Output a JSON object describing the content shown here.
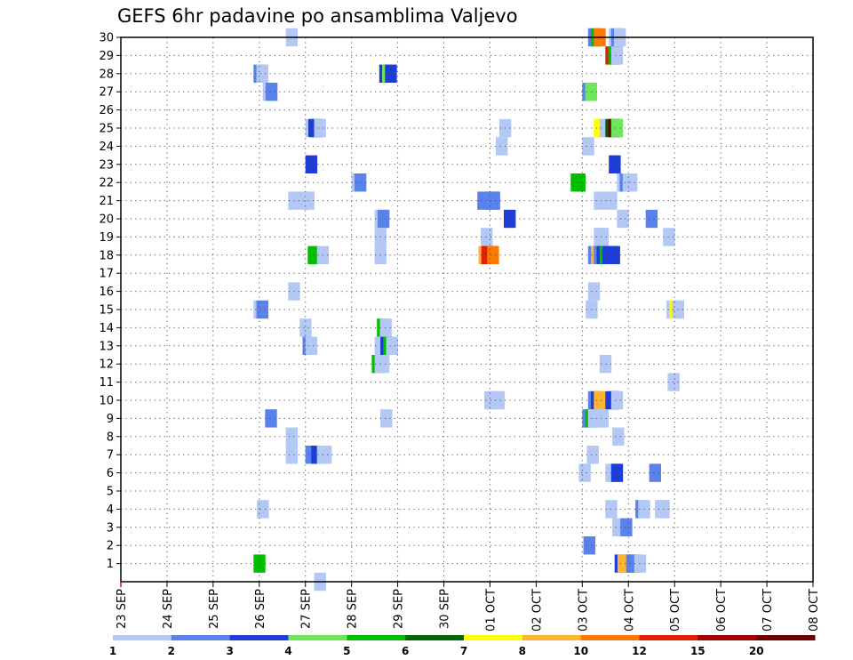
{
  "chart_data": {
    "type": "heatmap",
    "title": "GEFS 6hr padavine po ansamblima Valjevo",
    "xlabel": "",
    "ylabel": "",
    "x_ticks": [
      "23 SEP",
      "24 SEP",
      "25 SEP",
      "26 SEP",
      "27 SEP",
      "28 SEP",
      "29 SEP",
      "30 SEP",
      "01 OCT",
      "02 OCT",
      "03 OCT",
      "04 OCT",
      "05 OCT",
      "06 OCT",
      "07 OCT",
      "08 OCT"
    ],
    "x_range_days": [
      0,
      15
    ],
    "y_ticks": [
      1,
      2,
      3,
      4,
      5,
      6,
      7,
      8,
      9,
      10,
      11,
      12,
      13,
      14,
      15,
      16,
      17,
      18,
      19,
      20,
      21,
      22,
      23,
      24,
      25,
      26,
      27,
      28,
      29,
      30
    ],
    "y_range": [
      0,
      30
    ],
    "grid": true,
    "colorbar": {
      "labels": [
        "1",
        "2",
        "3",
        "4",
        "5",
        "6",
        "7",
        "8",
        "10",
        "12",
        "15",
        "20"
      ],
      "colors": [
        "#b4c8f5",
        "#5a82eb",
        "#1e3cd7",
        "#6ee65a",
        "#00be00",
        "#006400",
        "#ffff00",
        "#ffb432",
        "#ff7800",
        "#e11e00",
        "#a00000",
        "#6e0000"
      ]
    },
    "cells": [
      {
        "m": 30,
        "t": 14.3,
        "c": 0
      },
      {
        "m": 30,
        "t": 40.5,
        "c": 1
      },
      {
        "m": 30,
        "t": 40.75,
        "c": 4
      },
      {
        "m": 30,
        "t": 41,
        "c": 8
      },
      {
        "m": 30,
        "t": 42.3,
        "c": 0
      },
      {
        "m": 30,
        "t": 42.5,
        "c": 1
      },
      {
        "m": 30,
        "t": 42.75,
        "c": 0
      },
      {
        "m": 29,
        "t": 42,
        "c": 9
      },
      {
        "m": 29,
        "t": 42.25,
        "c": 4
      },
      {
        "m": 29,
        "t": 42.5,
        "c": 0
      },
      {
        "m": 28,
        "t": 11.5,
        "c": 1
      },
      {
        "m": 28,
        "t": 11.75,
        "c": 0
      },
      {
        "m": 28,
        "t": 22.4,
        "c": 2
      },
      {
        "m": 28,
        "t": 22.65,
        "c": 3
      },
      {
        "m": 28,
        "t": 22.9,
        "c": 2
      },
      {
        "m": 27,
        "t": 12.3,
        "c": 0
      },
      {
        "m": 27,
        "t": 12.55,
        "c": 1
      },
      {
        "m": 27,
        "t": 40,
        "c": 1
      },
      {
        "m": 27,
        "t": 40.25,
        "c": 3
      },
      {
        "m": 25,
        "t": 16,
        "c": 0
      },
      {
        "m": 25,
        "t": 16.25,
        "c": 2
      },
      {
        "m": 25,
        "t": 16.5,
        "c": 2
      },
      {
        "m": 25,
        "t": 16.75,
        "c": 0
      },
      {
        "m": 25,
        "t": 32.8,
        "c": 0
      },
      {
        "m": 25,
        "t": 41,
        "c": 6
      },
      {
        "m": 25,
        "t": 41.25,
        "c": 6
      },
      {
        "m": 25,
        "t": 41.5,
        "c": 0
      },
      {
        "m": 25,
        "t": 42,
        "c": 5
      },
      {
        "m": 25,
        "t": 42.25,
        "c": 11
      },
      {
        "m": 25,
        "t": 42.5,
        "c": 3
      },
      {
        "m": 24,
        "t": 32.5,
        "c": 0
      },
      {
        "m": 24,
        "t": 40,
        "c": 0
      },
      {
        "m": 23,
        "t": 16,
        "c": 2
      },
      {
        "m": 23,
        "t": 42.3,
        "c": 2
      },
      {
        "m": 22,
        "t": 20,
        "c": 0
      },
      {
        "m": 22,
        "t": 20.25,
        "c": 1
      },
      {
        "m": 22,
        "t": 39,
        "c": 4
      },
      {
        "m": 22,
        "t": 39.25,
        "c": 4
      },
      {
        "m": 22,
        "t": 43,
        "c": 0
      },
      {
        "m": 22,
        "t": 43.25,
        "c": 1
      },
      {
        "m": 22,
        "t": 43.5,
        "c": 0
      },
      {
        "m": 22,
        "t": 43.75,
        "c": 0
      },
      {
        "m": 21,
        "t": 14.5,
        "c": 0
      },
      {
        "m": 21,
        "t": 15.5,
        "c": 0
      },
      {
        "m": 21,
        "t": 15.75,
        "c": 0
      },
      {
        "m": 21,
        "t": 30.9,
        "c": 1
      },
      {
        "m": 21,
        "t": 31.6,
        "c": 1
      },
      {
        "m": 21,
        "t": 31.85,
        "c": 1
      },
      {
        "m": 21,
        "t": 41,
        "c": 0
      },
      {
        "m": 21,
        "t": 42,
        "c": 0
      },
      {
        "m": 20,
        "t": 22,
        "c": 0
      },
      {
        "m": 20,
        "t": 22.25,
        "c": 1
      },
      {
        "m": 20,
        "t": 33.2,
        "c": 2
      },
      {
        "m": 20,
        "t": 43,
        "c": 0
      },
      {
        "m": 20,
        "t": 45.5,
        "c": 1
      },
      {
        "m": 19,
        "t": 22,
        "c": 0
      },
      {
        "m": 19,
        "t": 31.2,
        "c": 0
      },
      {
        "m": 19,
        "t": 41,
        "c": 0
      },
      {
        "m": 19,
        "t": 41.25,
        "c": 0
      },
      {
        "m": 19,
        "t": 47,
        "c": 0
      },
      {
        "m": 18,
        "t": 16.2,
        "c": 4
      },
      {
        "m": 18,
        "t": 17,
        "c": 0
      },
      {
        "m": 18,
        "t": 22,
        "c": 0
      },
      {
        "m": 18,
        "t": 31,
        "c": 7
      },
      {
        "m": 18,
        "t": 31.25,
        "c": 9
      },
      {
        "m": 18,
        "t": 31.5,
        "c": 9
      },
      {
        "m": 18,
        "t": 31.75,
        "c": 8
      },
      {
        "m": 18,
        "t": 40.5,
        "c": 1
      },
      {
        "m": 18,
        "t": 40.75,
        "c": 7
      },
      {
        "m": 18,
        "t": 41,
        "c": 1
      },
      {
        "m": 18,
        "t": 41.25,
        "c": 2
      },
      {
        "m": 18,
        "t": 41.5,
        "c": 4
      },
      {
        "m": 18,
        "t": 41.75,
        "c": 2
      },
      {
        "m": 18,
        "t": 42,
        "c": 2
      },
      {
        "m": 18,
        "t": 42.25,
        "c": 2
      },
      {
        "m": 16,
        "t": 14.5,
        "c": 0
      },
      {
        "m": 16,
        "t": 40.5,
        "c": 0
      },
      {
        "m": 15,
        "t": 11.5,
        "c": 0
      },
      {
        "m": 15,
        "t": 11.75,
        "c": 1
      },
      {
        "m": 15,
        "t": 40.3,
        "c": 0
      },
      {
        "m": 15,
        "t": 47.3,
        "c": 0
      },
      {
        "m": 15,
        "t": 47.55,
        "c": 6
      },
      {
        "m": 15,
        "t": 47.8,
        "c": 0
      },
      {
        "m": 14,
        "t": 15.5,
        "c": 0
      },
      {
        "m": 14,
        "t": 22.2,
        "c": 4
      },
      {
        "m": 14,
        "t": 22.45,
        "c": 0
      },
      {
        "m": 13,
        "t": 15.75,
        "c": 1
      },
      {
        "m": 13,
        "t": 16,
        "c": 0
      },
      {
        "m": 13,
        "t": 22,
        "c": 0
      },
      {
        "m": 13,
        "t": 22.5,
        "c": 2
      },
      {
        "m": 13,
        "t": 22.75,
        "c": 4
      },
      {
        "m": 13,
        "t": 23,
        "c": 0
      },
      {
        "m": 12,
        "t": 21.75,
        "c": 4
      },
      {
        "m": 12,
        "t": 22,
        "c": 0
      },
      {
        "m": 12,
        "t": 22.25,
        "c": 0
      },
      {
        "m": 12,
        "t": 41.5,
        "c": 0
      },
      {
        "m": 11,
        "t": 47.4,
        "c": 0
      },
      {
        "m": 10,
        "t": 31.5,
        "c": 0
      },
      {
        "m": 10,
        "t": 31.75,
        "c": 0
      },
      {
        "m": 10,
        "t": 32,
        "c": 0
      },
      {
        "m": 10,
        "t": 32.25,
        "c": 0
      },
      {
        "m": 10,
        "t": 40.5,
        "c": 1
      },
      {
        "m": 10,
        "t": 40.75,
        "c": 2
      },
      {
        "m": 10,
        "t": 41,
        "c": 7
      },
      {
        "m": 10,
        "t": 42,
        "c": 2
      },
      {
        "m": 10,
        "t": 42.25,
        "c": 2
      },
      {
        "m": 10,
        "t": 42.5,
        "c": 0
      },
      {
        "m": 9,
        "t": 12.5,
        "c": 1
      },
      {
        "m": 9,
        "t": 22.5,
        "c": 0
      },
      {
        "m": 9,
        "t": 40,
        "c": 1
      },
      {
        "m": 9,
        "t": 40.25,
        "c": 4
      },
      {
        "m": 9,
        "t": 40.5,
        "c": 0
      },
      {
        "m": 9,
        "t": 40.75,
        "c": 0
      },
      {
        "m": 9,
        "t": 41.25,
        "c": 0
      },
      {
        "m": 8,
        "t": 14.3,
        "c": 0
      },
      {
        "m": 8,
        "t": 42.6,
        "c": 0
      },
      {
        "m": 7,
        "t": 14.3,
        "c": 0
      },
      {
        "m": 7,
        "t": 16,
        "c": 1
      },
      {
        "m": 7,
        "t": 16.5,
        "c": 2
      },
      {
        "m": 7,
        "t": 16.75,
        "c": 2
      },
      {
        "m": 7,
        "t": 17,
        "c": 0
      },
      {
        "m": 7,
        "t": 17.25,
        "c": 0
      },
      {
        "m": 7,
        "t": 40.4,
        "c": 0
      },
      {
        "m": 6,
        "t": 39.7,
        "c": 0
      },
      {
        "m": 6,
        "t": 42,
        "c": 0
      },
      {
        "m": 6,
        "t": 42.25,
        "c": 0
      },
      {
        "m": 6,
        "t": 42.5,
        "c": 2
      },
      {
        "m": 6,
        "t": 45.8,
        "c": 1
      },
      {
        "m": 4,
        "t": 11.8,
        "c": 0
      },
      {
        "m": 4,
        "t": 42,
        "c": 0
      },
      {
        "m": 4,
        "t": 44.6,
        "c": 1
      },
      {
        "m": 4,
        "t": 44.85,
        "c": 0
      },
      {
        "m": 4,
        "t": 46.3,
        "c": 0
      },
      {
        "m": 4,
        "t": 46.55,
        "c": 0
      },
      {
        "m": 3,
        "t": 42.6,
        "c": 0
      },
      {
        "m": 3,
        "t": 43.3,
        "c": 1
      },
      {
        "m": 2,
        "t": 40.1,
        "c": 1
      },
      {
        "m": 1,
        "t": 11.5,
        "c": 4
      },
      {
        "m": 1,
        "t": 42.8,
        "c": 2
      },
      {
        "m": 1,
        "t": 43.05,
        "c": 7
      },
      {
        "m": 1,
        "t": 43.3,
        "c": 7
      },
      {
        "m": 1,
        "t": 43.55,
        "c": 7
      },
      {
        "m": 1,
        "t": 43.8,
        "c": 1
      },
      {
        "m": 1,
        "t": 44.05,
        "c": 1
      },
      {
        "m": 1,
        "t": 44.5,
        "c": 0
      },
      {
        "m": 0,
        "t": 16.75,
        "c": 0
      }
    ]
  }
}
